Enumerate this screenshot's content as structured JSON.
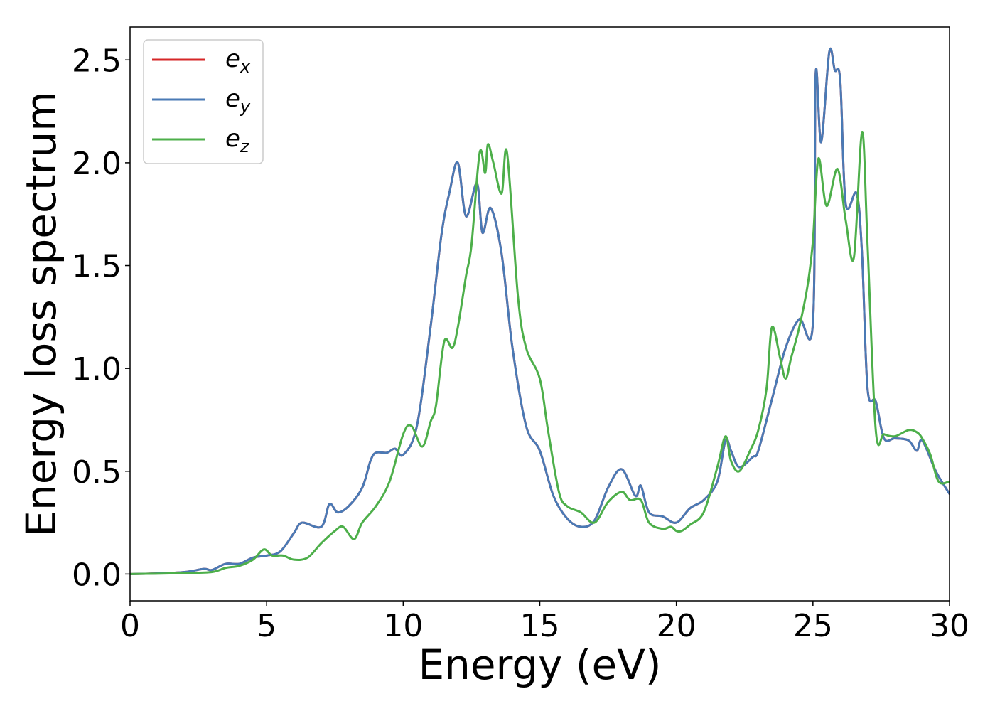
{
  "chart_data": {
    "type": "line",
    "xlabel": "Energy (eV)",
    "ylabel": "Energy loss spectrum",
    "xlim": [
      0,
      30
    ],
    "ylim": [
      -0.13,
      2.66
    ],
    "xticks": [
      "0",
      "5",
      "10",
      "15",
      "20",
      "25",
      "30"
    ],
    "yticks": [
      "0.0",
      "0.5",
      "1.0",
      "1.5",
      "2.0",
      "2.5"
    ],
    "grid": false,
    "legend_position": "top-left",
    "series": [
      {
        "name": "e_x",
        "legend_base": "e",
        "legend_sub": "x",
        "color": "#d62728",
        "x": [
          0,
          1,
          2,
          2.7,
          3,
          3.5,
          4,
          4.5,
          5,
          5.5,
          6,
          6.3,
          7,
          7.3,
          7.6,
          8,
          8.5,
          8.8,
          9,
          9.4,
          9.7,
          10,
          10.5,
          11,
          11.4,
          11.7,
          12,
          12.3,
          12.7,
          12.9,
          13.2,
          13.6,
          14,
          14.5,
          15,
          15.5,
          16,
          16.5,
          17,
          17.5,
          18,
          18.5,
          18.7,
          19,
          19.5,
          20,
          20.5,
          21,
          21.5,
          21.8,
          22,
          22.3,
          22.8,
          23,
          23.5,
          24,
          24.5,
          25,
          25.1,
          25.3,
          25.6,
          25.8,
          26,
          26.2,
          26.6,
          26.8,
          27,
          27.3,
          27.6,
          28,
          28.5,
          28.8,
          29,
          29.5,
          30
        ],
        "y": [
          0,
          0.003,
          0.01,
          0.025,
          0.02,
          0.05,
          0.05,
          0.08,
          0.09,
          0.11,
          0.2,
          0.25,
          0.23,
          0.34,
          0.3,
          0.33,
          0.42,
          0.55,
          0.59,
          0.59,
          0.61,
          0.58,
          0.72,
          1.2,
          1.65,
          1.86,
          2.0,
          1.74,
          1.9,
          1.66,
          1.78,
          1.56,
          1.1,
          0.72,
          0.6,
          0.38,
          0.27,
          0.23,
          0.26,
          0.42,
          0.51,
          0.38,
          0.43,
          0.3,
          0.28,
          0.25,
          0.32,
          0.36,
          0.45,
          0.65,
          0.6,
          0.52,
          0.57,
          0.6,
          0.85,
          1.1,
          1.24,
          1.22,
          2.43,
          2.1,
          2.54,
          2.45,
          2.4,
          1.8,
          1.85,
          1.55,
          0.9,
          0.84,
          0.66,
          0.66,
          0.65,
          0.6,
          0.65,
          0.5,
          0.39
        ]
      },
      {
        "name": "e_y",
        "legend_base": "e",
        "legend_sub": "y",
        "color": "#4a7ab5",
        "x": [
          0,
          1,
          2,
          2.7,
          3,
          3.5,
          4,
          4.5,
          5,
          5.5,
          6,
          6.3,
          7,
          7.3,
          7.6,
          8,
          8.5,
          8.8,
          9,
          9.4,
          9.7,
          10,
          10.5,
          11,
          11.4,
          11.7,
          12,
          12.3,
          12.7,
          12.9,
          13.2,
          13.6,
          14,
          14.5,
          15,
          15.5,
          16,
          16.5,
          17,
          17.5,
          18,
          18.5,
          18.7,
          19,
          19.5,
          20,
          20.5,
          21,
          21.5,
          21.8,
          22,
          22.3,
          22.8,
          23,
          23.5,
          24,
          24.5,
          25,
          25.1,
          25.3,
          25.6,
          25.8,
          26,
          26.2,
          26.6,
          26.8,
          27,
          27.3,
          27.6,
          28,
          28.5,
          28.8,
          29,
          29.5,
          30
        ],
        "y": [
          0,
          0.003,
          0.01,
          0.025,
          0.02,
          0.05,
          0.05,
          0.08,
          0.09,
          0.11,
          0.2,
          0.25,
          0.23,
          0.34,
          0.3,
          0.33,
          0.42,
          0.55,
          0.59,
          0.59,
          0.61,
          0.58,
          0.72,
          1.2,
          1.65,
          1.86,
          2.0,
          1.74,
          1.9,
          1.66,
          1.78,
          1.56,
          1.1,
          0.72,
          0.6,
          0.38,
          0.27,
          0.23,
          0.26,
          0.42,
          0.51,
          0.38,
          0.43,
          0.3,
          0.28,
          0.25,
          0.32,
          0.36,
          0.45,
          0.65,
          0.6,
          0.52,
          0.57,
          0.6,
          0.85,
          1.1,
          1.24,
          1.22,
          2.43,
          2.1,
          2.54,
          2.45,
          2.4,
          1.8,
          1.85,
          1.55,
          0.9,
          0.84,
          0.66,
          0.66,
          0.65,
          0.6,
          0.65,
          0.5,
          0.39
        ]
      },
      {
        "name": "e_z",
        "legend_base": "e",
        "legend_sub": "z",
        "color": "#4daf4a",
        "x": [
          0,
          1,
          2,
          3,
          3.5,
          4,
          4.5,
          4.9,
          5.2,
          5.6,
          6,
          6.5,
          7,
          7.5,
          7.8,
          8.2,
          8.5,
          9,
          9.5,
          10,
          10.3,
          10.7,
          11,
          11.2,
          11.5,
          11.8,
          12,
          12.3,
          12.5,
          12.8,
          13,
          13.1,
          13.3,
          13.6,
          13.8,
          14.2,
          14.5,
          15,
          15.3,
          15.7,
          16,
          16.5,
          17,
          17.5,
          18,
          18.3,
          18.7,
          19,
          19.5,
          19.8,
          20,
          20.2,
          20.5,
          21,
          21.5,
          21.8,
          22,
          22.3,
          22.7,
          23,
          23.3,
          23.5,
          23.8,
          24,
          24.2,
          24.5,
          24.8,
          25,
          25.2,
          25.5,
          25.9,
          26.2,
          26.5,
          26.8,
          27,
          27.3,
          27.6,
          28,
          28.5,
          28.8,
          29,
          29.3,
          29.6,
          30
        ],
        "y": [
          0,
          0.002,
          0.005,
          0.01,
          0.03,
          0.04,
          0.07,
          0.12,
          0.09,
          0.09,
          0.07,
          0.08,
          0.15,
          0.21,
          0.23,
          0.17,
          0.25,
          0.33,
          0.45,
          0.68,
          0.72,
          0.62,
          0.74,
          0.82,
          1.13,
          1.1,
          1.2,
          1.45,
          1.6,
          2.05,
          1.95,
          2.09,
          2.0,
          1.85,
          2.05,
          1.35,
          1.1,
          0.95,
          0.7,
          0.4,
          0.33,
          0.3,
          0.25,
          0.35,
          0.4,
          0.36,
          0.36,
          0.25,
          0.22,
          0.23,
          0.21,
          0.21,
          0.24,
          0.3,
          0.52,
          0.67,
          0.55,
          0.5,
          0.6,
          0.7,
          0.9,
          1.2,
          1.05,
          0.95,
          1.05,
          1.2,
          1.4,
          1.62,
          2.02,
          1.79,
          1.97,
          1.72,
          1.54,
          2.15,
          1.6,
          0.7,
          0.68,
          0.67,
          0.7,
          0.69,
          0.66,
          0.58,
          0.45,
          0.45
        ]
      }
    ]
  }
}
